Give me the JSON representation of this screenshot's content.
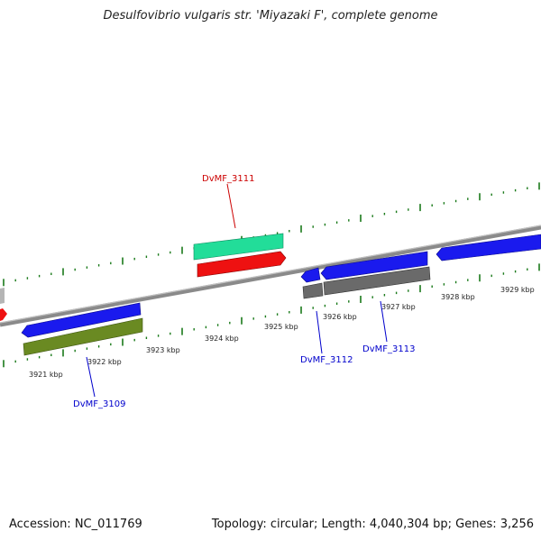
{
  "title": "Desulfovibrio vulgaris str. 'Miyazaki F', complete genome",
  "footer": {
    "accession": "Accession: NC_011769",
    "summary": "Topology: circular; Length: 4,040,304 bp; Genes: 3,256"
  },
  "tick_labels": [
    "3921 kbp",
    "3922 kbp",
    "3923 kbp",
    "3924 kbp",
    "3925 kbp",
    "3926 kbp",
    "3927 kbp",
    "3928 kbp",
    "3929 kbp"
  ],
  "gene_labels": [
    {
      "text": "DvMF_3111",
      "color": "#cc0000"
    },
    {
      "text": "DvMF_3112",
      "color": "#0000cc"
    },
    {
      "text": "DvMF_3113",
      "color": "#0000cc"
    },
    {
      "text": "DvMF_3109",
      "color": "#0000cc"
    }
  ],
  "colors": {
    "backbone": "#808080",
    "tick": "#1a7a1a",
    "gene_blue": "#1a1aee",
    "gene_red": "#ee1111",
    "gene_teal": "#22dd99",
    "gene_olive": "#6a8a22",
    "gene_gray": "#707070"
  }
}
